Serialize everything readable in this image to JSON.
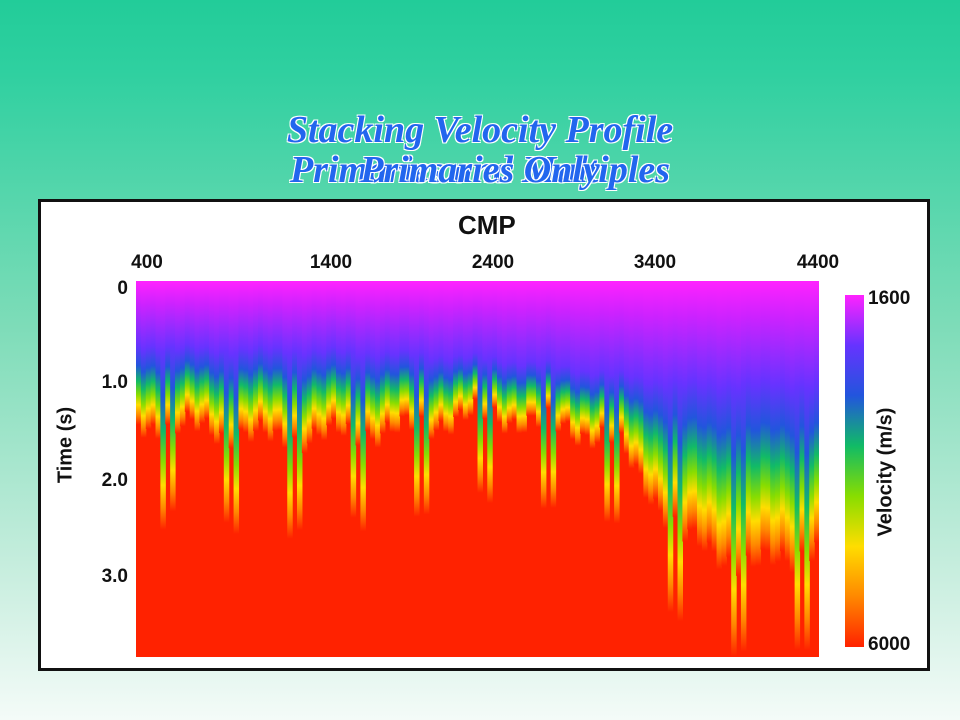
{
  "title": "Stacking Velocity Profile",
  "subtitle_overlap_a": "Primaries and Multiples",
  "subtitle_overlap_b": "Primaries Only",
  "chart_data": {
    "type": "heatmap",
    "xlabel": "CMP",
    "ylabel": "Time (s)",
    "x_ticks": [
      "400",
      "1400",
      "2400",
      "3400",
      "4400"
    ],
    "y_ticks": [
      "0",
      "1.0",
      "2.0",
      "3.0"
    ],
    "xlim": [
      400,
      4400
    ],
    "ylim": [
      0,
      3.8
    ],
    "y_inverted": true,
    "colorbar": {
      "label": "Velocity (m/s)",
      "min_label": "1600",
      "max_label": "6000",
      "min": 1600,
      "max": 6000,
      "colors_low_to_high": [
        "#ff22ff",
        "#6633ff",
        "#2255dd",
        "#11bb66",
        "#88dd00",
        "#ffdd00",
        "#ff8800",
        "#ff2200"
      ]
    },
    "transition_times_s": [
      {
        "cmp": 400,
        "purple_end": 0.65,
        "red_start": 1.45
      },
      {
        "cmp": 800,
        "purple_end": 0.7,
        "red_start": 1.5
      },
      {
        "cmp": 1200,
        "purple_end": 0.7,
        "red_start": 1.6
      },
      {
        "cmp": 1600,
        "purple_end": 0.72,
        "red_start": 1.55
      },
      {
        "cmp": 2000,
        "purple_end": 0.75,
        "red_start": 1.5
      },
      {
        "cmp": 2400,
        "purple_end": 0.78,
        "red_start": 1.35
      },
      {
        "cmp": 2800,
        "purple_end": 0.85,
        "red_start": 1.45
      },
      {
        "cmp": 3200,
        "purple_end": 0.95,
        "red_start": 1.6
      },
      {
        "cmp": 3600,
        "purple_end": 1.05,
        "red_start": 2.6
      },
      {
        "cmp": 4000,
        "purple_end": 1.05,
        "red_start": 2.9
      },
      {
        "cmp": 4400,
        "purple_end": 1.05,
        "red_start": 2.7
      }
    ]
  }
}
